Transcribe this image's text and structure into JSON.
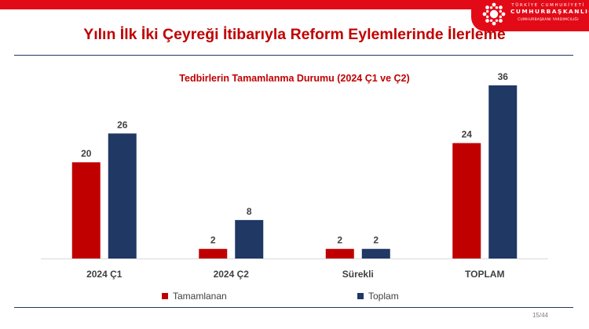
{
  "header": {
    "org_line1": "TÜRKİYE CUMHURİYETİ",
    "org_line2": "CUMHURBAŞKANLIĞI",
    "org_line3": "CUMHURBAŞKANI YARDIMCILIĞI",
    "emblem_icon": "sun-star-emblem-icon"
  },
  "slide": {
    "title": "Yılın İlk İki Çeyreği İtibarıyla Reform Eylemlerinde İlerleme",
    "page": "15/44"
  },
  "colors": {
    "brand_red": "#e30a17",
    "title_red": "#c00000",
    "navy": "#1f3864",
    "series_red": "#c00000",
    "series_navy": "#1f3864"
  },
  "chart_data": {
    "type": "bar",
    "title": "Tedbirlerin Tamamlanma Durumu (2024 Ç1 ve Ç2)",
    "categories": [
      "2024 Ç1",
      "2024 Ç2",
      "Sürekli",
      "TOPLAM"
    ],
    "series": [
      {
        "name": "Tamamlanan",
        "values": [
          20,
          2,
          2,
          24
        ],
        "color": "#c00000"
      },
      {
        "name": "Toplam",
        "values": [
          26,
          8,
          2,
          36
        ],
        "color": "#1f3864"
      }
    ],
    "ylim": [
      0,
      36
    ],
    "grid": false,
    "data_labels": true,
    "legend_position": "bottom"
  }
}
